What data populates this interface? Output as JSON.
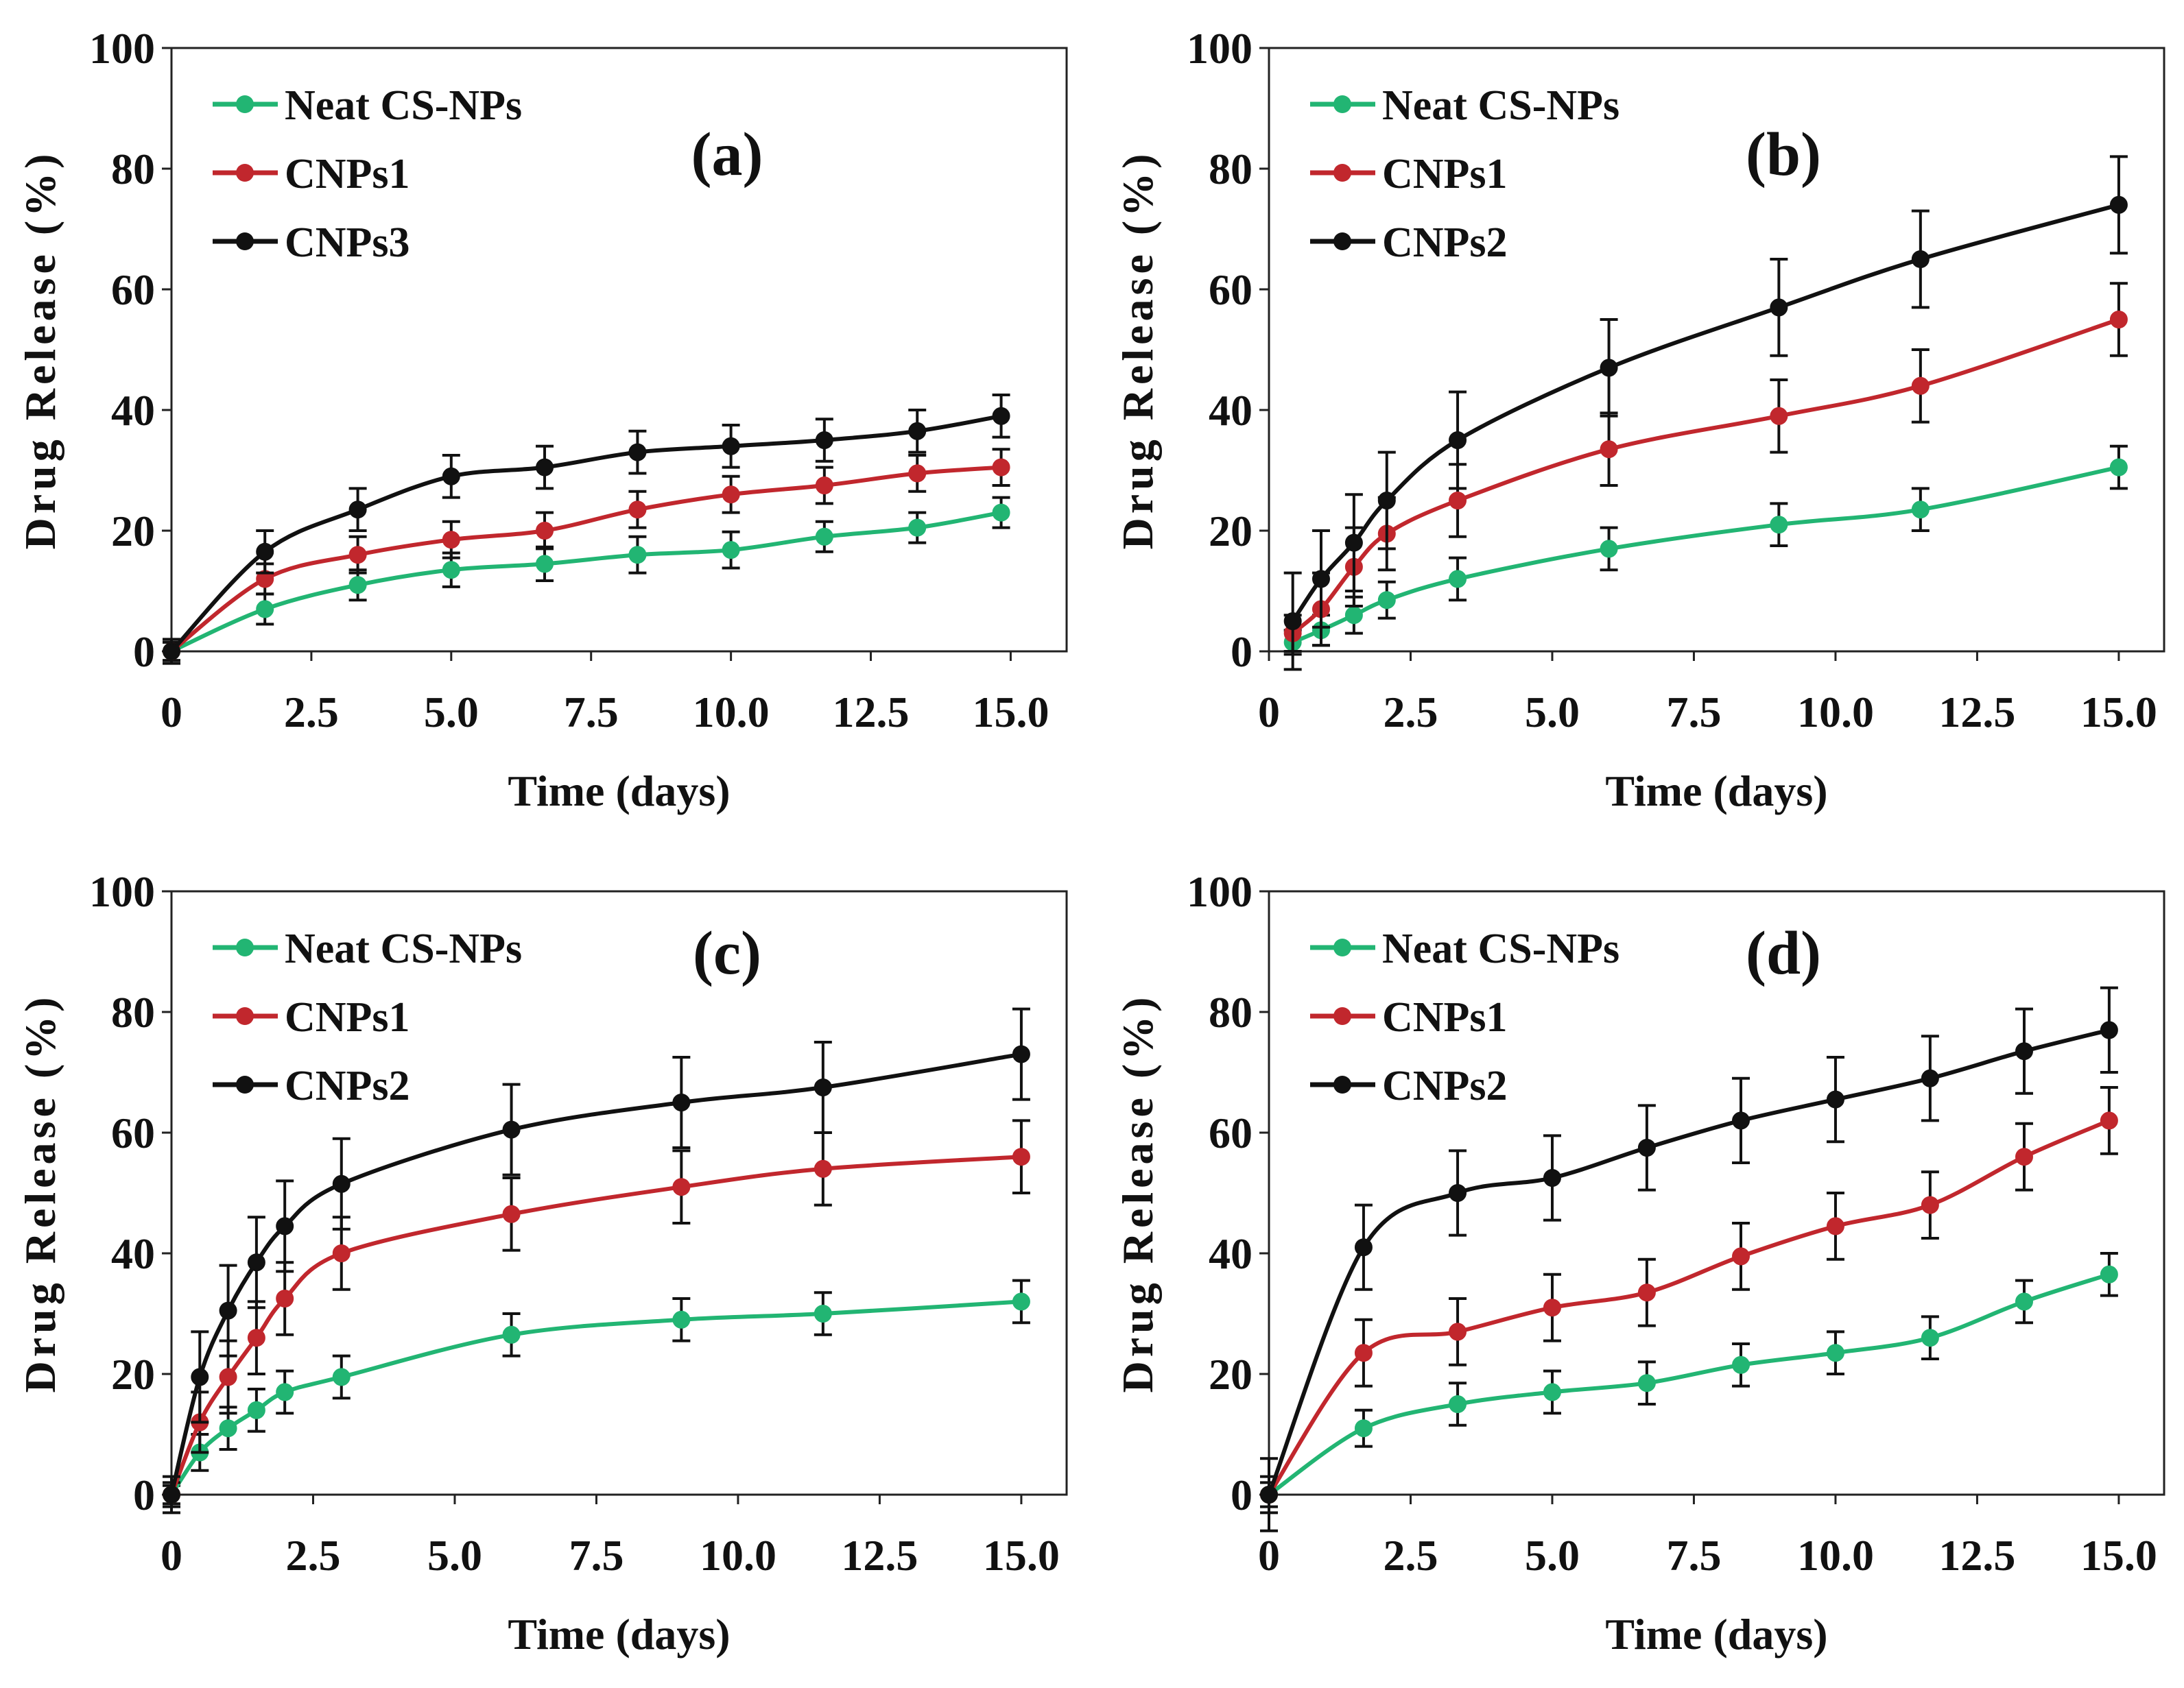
{
  "chart_data": [
    {
      "type": "line",
      "panel_label": "(a)",
      "xlabel": "Time (days)",
      "ylabel": "Drug Release (%)",
      "xlim": [
        0,
        16
      ],
      "ylim": [
        0,
        100
      ],
      "x_ticks": [
        0,
        2.5,
        5.0,
        7.5,
        10.0,
        12.5,
        15.0
      ],
      "x_tick_labels": [
        "0",
        "2.5",
        "5.0",
        "7.5",
        "10.0",
        "12.5",
        "15.0"
      ],
      "y_ticks": [
        0,
        20,
        40,
        60,
        80,
        100
      ],
      "y_tick_labels": [
        "0",
        "20",
        "40",
        "60",
        "80",
        "100"
      ],
      "legend_position": "top-left",
      "series": [
        {
          "name": "Neat CS-NPs",
          "color": "#22b573",
          "x": [
            0,
            1.67,
            3.33,
            5.0,
            6.67,
            8.33,
            10.0,
            11.67,
            13.33,
            14.83
          ],
          "y": [
            0,
            7,
            11,
            13.5,
            14.5,
            16,
            16.8,
            19,
            20.5,
            23
          ],
          "err": [
            1.5,
            2.5,
            2.5,
            2.8,
            2.8,
            3,
            3,
            2.5,
            2.5,
            2.5
          ]
        },
        {
          "name": "CNPs1",
          "color": "#c1272d",
          "x": [
            0,
            1.67,
            3.33,
            5.0,
            6.67,
            8.33,
            10.0,
            11.67,
            13.33,
            14.83
          ],
          "y": [
            0,
            12,
            16,
            18.5,
            20,
            23.5,
            26,
            27.5,
            29.5,
            30.5
          ],
          "err": [
            1.5,
            2.5,
            3,
            3,
            3,
            3,
            3,
            3,
            3,
            3
          ]
        },
        {
          "name": "CNPs3",
          "color": "#111111",
          "x": [
            0,
            1.67,
            3.33,
            5.0,
            6.67,
            8.33,
            10.0,
            11.67,
            13.33,
            14.83
          ],
          "y": [
            0,
            16.5,
            23.5,
            29,
            30.5,
            33,
            34,
            35,
            36.5,
            39
          ],
          "err": [
            2,
            3.5,
            3.5,
            3.5,
            3.5,
            3.5,
            3.5,
            3.5,
            3.5,
            3.5
          ]
        }
      ]
    },
    {
      "type": "line",
      "panel_label": "(b)",
      "xlabel": "Time (days)",
      "ylabel": "Drug Release (%)",
      "xlim": [
        0,
        15.8
      ],
      "ylim": [
        0,
        100
      ],
      "x_ticks": [
        0,
        2.5,
        5.0,
        7.5,
        10.0,
        12.5,
        15.0
      ],
      "x_tick_labels": [
        "0",
        "2.5",
        "5.0",
        "7.5",
        "10.0",
        "12.5",
        "15.0"
      ],
      "y_ticks": [
        0,
        20,
        40,
        60,
        80,
        100
      ],
      "y_tick_labels": [
        "0",
        "20",
        "40",
        "60",
        "80",
        "100"
      ],
      "legend_position": "top-left",
      "series": [
        {
          "name": "Neat CS-NPs",
          "color": "#22b573",
          "x": [
            0.42,
            0.92,
            1.5,
            2.08,
            3.33,
            6.0,
            9.0,
            11.5,
            15.0
          ],
          "y": [
            1.5,
            3.5,
            6,
            8.5,
            12,
            17,
            21,
            23.5,
            30.5
          ],
          "err": [
            2,
            2.5,
            3,
            3,
            3.5,
            3.5,
            3.5,
            3.5,
            3.5
          ]
        },
        {
          "name": "CNPs1",
          "color": "#c1272d",
          "x": [
            0.42,
            0.92,
            1.5,
            2.08,
            3.33,
            6.0,
            9.0,
            11.5,
            15.0
          ],
          "y": [
            3,
            7,
            14,
            19.5,
            25,
            33.5,
            39,
            44,
            55
          ],
          "err": [
            3,
            6,
            6.5,
            6,
            6,
            6,
            6,
            6,
            6
          ]
        },
        {
          "name": "CNPs2",
          "color": "#111111",
          "x": [
            0.42,
            0.92,
            1.5,
            2.08,
            3.33,
            6.0,
            9.0,
            11.5,
            15.0
          ],
          "y": [
            5,
            12,
            18,
            25,
            35,
            47,
            57,
            65,
            74
          ],
          "err": [
            8,
            8,
            8,
            8,
            8,
            8,
            8,
            8,
            8
          ]
        }
      ]
    },
    {
      "type": "line",
      "panel_label": "(c)",
      "xlabel": "Time (days)",
      "ylabel": "Drug Release (%)",
      "xlim": [
        0,
        15.8
      ],
      "ylim": [
        0,
        100
      ],
      "x_ticks": [
        0,
        2.5,
        5.0,
        7.5,
        10.0,
        12.5,
        15.0
      ],
      "x_tick_labels": [
        "0",
        "2.5",
        "5.0",
        "7.5",
        "10.0",
        "12.5",
        "15.0"
      ],
      "y_ticks": [
        0,
        20,
        40,
        60,
        80,
        100
      ],
      "y_tick_labels": [
        "0",
        "20",
        "40",
        "60",
        "80",
        "100"
      ],
      "legend_position": "top-left",
      "series": [
        {
          "name": "Neat CS-NPs",
          "color": "#22b573",
          "x": [
            0,
            0.5,
            1.0,
            1.5,
            2.0,
            3.0,
            6.0,
            9.0,
            11.5,
            15.0
          ],
          "y": [
            0,
            7,
            11,
            14,
            17,
            19.5,
            26.5,
            29,
            30,
            32
          ],
          "err": [
            1.5,
            3,
            3.5,
            3.5,
            3.5,
            3.5,
            3.5,
            3.5,
            3.5,
            3.5
          ]
        },
        {
          "name": "CNPs1",
          "color": "#c1272d",
          "x": [
            0,
            0.5,
            1.0,
            1.5,
            2.0,
            3.0,
            6.0,
            9.0,
            11.5,
            15.0
          ],
          "y": [
            0,
            12,
            19.5,
            26,
            32.5,
            40,
            46.5,
            51,
            54,
            56
          ],
          "err": [
            2,
            5,
            6,
            6,
            6,
            6,
            6,
            6,
            6,
            6
          ]
        },
        {
          "name": "CNPs2",
          "color": "#111111",
          "x": [
            0,
            0.5,
            1.0,
            1.5,
            2.0,
            3.0,
            6.0,
            9.0,
            11.5,
            15.0
          ],
          "y": [
            0,
            19.5,
            30.5,
            38.5,
            44.5,
            51.5,
            60.5,
            65,
            67.5,
            73
          ],
          "err": [
            3,
            7.5,
            7.5,
            7.5,
            7.5,
            7.5,
            7.5,
            7.5,
            7.5,
            7.5
          ]
        }
      ]
    },
    {
      "type": "line",
      "panel_label": "(d)",
      "xlabel": "Time (days)",
      "ylabel": "Drug Release (%)",
      "xlim": [
        0,
        15.8
      ],
      "ylim": [
        0,
        100
      ],
      "x_ticks": [
        0,
        2.5,
        5.0,
        7.5,
        10.0,
        12.5,
        15.0
      ],
      "x_tick_labels": [
        "0",
        "2.5",
        "5.0",
        "7.5",
        "10.0",
        "12.5",
        "15.0"
      ],
      "y_ticks": [
        0,
        20,
        40,
        60,
        80,
        100
      ],
      "y_tick_labels": [
        "0",
        "20",
        "40",
        "60",
        "80",
        "100"
      ],
      "legend_position": "top-left",
      "series": [
        {
          "name": "Neat CS-NPs",
          "color": "#22b573",
          "x": [
            0,
            1.67,
            3.33,
            5.0,
            6.67,
            8.33,
            10.0,
            11.67,
            13.33,
            14.83
          ],
          "y": [
            0,
            11,
            15,
            17,
            18.5,
            21.5,
            23.5,
            26,
            32,
            36.5
          ],
          "err": [
            2,
            3,
            3.5,
            3.5,
            3.5,
            3.5,
            3.5,
            3.5,
            3.5,
            3.5
          ]
        },
        {
          "name": "CNPs1",
          "color": "#c1272d",
          "x": [
            0,
            1.67,
            3.33,
            5.0,
            6.67,
            8.33,
            10.0,
            11.67,
            13.33,
            14.83
          ],
          "y": [
            0,
            23.5,
            27,
            31,
            33.5,
            39.5,
            44.5,
            48,
            56,
            62
          ],
          "err": [
            3,
            5.5,
            5.5,
            5.5,
            5.5,
            5.5,
            5.5,
            5.5,
            5.5,
            5.5
          ]
        },
        {
          "name": "CNPs2",
          "color": "#111111",
          "x": [
            0,
            1.67,
            3.33,
            5.0,
            6.67,
            8.33,
            10.0,
            11.67,
            13.33,
            14.83
          ],
          "y": [
            0,
            41,
            50,
            52.5,
            57.5,
            62,
            65.5,
            69,
            73.5,
            77
          ],
          "err": [
            6,
            7,
            7,
            7,
            7,
            7,
            7,
            7,
            7,
            7
          ]
        }
      ]
    }
  ]
}
